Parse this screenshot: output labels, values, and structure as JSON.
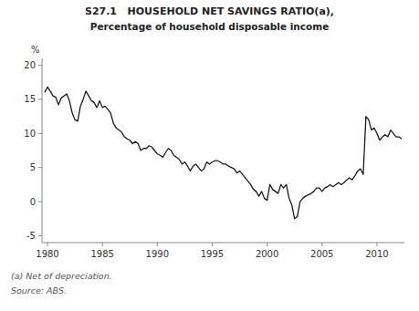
{
  "chart_data": {
    "type": "line",
    "title": "S27.1   HOUSEHOLD NET SAVINGS RATIO(a),",
    "subtitle": "Percentage of household disposable income",
    "ylabel": "%",
    "annotations": [
      "(a) Net of depreciation.",
      "Source: ABS."
    ],
    "xlim": [
      1979.5,
      2012.5
    ],
    "ylim": [
      -6,
      21
    ],
    "xticks": [
      1980,
      1985,
      1990,
      1995,
      2000,
      2005,
      2010
    ],
    "yticks": [
      -5,
      0,
      5,
      10,
      15,
      20
    ],
    "grid": false,
    "x": [
      1979.75,
      1980.0,
      1980.25,
      1980.5,
      1980.75,
      1981.0,
      1981.25,
      1981.5,
      1981.75,
      1982.0,
      1982.25,
      1982.5,
      1982.75,
      1983.0,
      1983.25,
      1983.5,
      1983.75,
      1984.0,
      1984.25,
      1984.5,
      1984.75,
      1985.0,
      1985.25,
      1985.5,
      1985.75,
      1986.0,
      1986.25,
      1986.5,
      1986.75,
      1987.0,
      1987.25,
      1987.5,
      1987.75,
      1988.0,
      1988.25,
      1988.5,
      1988.75,
      1989.0,
      1989.25,
      1989.5,
      1989.75,
      1990.0,
      1990.25,
      1990.5,
      1990.75,
      1991.0,
      1991.25,
      1991.5,
      1991.75,
      1992.0,
      1992.25,
      1992.5,
      1992.75,
      1993.0,
      1993.25,
      1993.5,
      1993.75,
      1994.0,
      1994.25,
      1994.5,
      1994.75,
      1995.0,
      1995.25,
      1995.5,
      1995.75,
      1996.0,
      1996.25,
      1996.5,
      1996.75,
      1997.0,
      1997.25,
      1997.5,
      1997.75,
      1998.0,
      1998.25,
      1998.5,
      1998.75,
      1999.0,
      1999.25,
      1999.5,
      1999.75,
      2000.0,
      2000.25,
      2000.5,
      2000.75,
      2001.0,
      2001.25,
      2001.5,
      2001.75,
      2002.0,
      2002.25,
      2002.5,
      2002.75,
      2003.0,
      2003.25,
      2003.5,
      2003.75,
      2004.0,
      2004.25,
      2004.5,
      2004.75,
      2005.0,
      2005.25,
      2005.5,
      2005.75,
      2006.0,
      2006.25,
      2006.5,
      2006.75,
      2007.0,
      2007.25,
      2007.5,
      2007.75,
      2008.0,
      2008.25,
      2008.5,
      2008.75,
      2009.0,
      2009.25,
      2009.5,
      2009.75,
      2010.0,
      2010.25,
      2010.5,
      2010.75,
      2011.0,
      2011.25,
      2011.5,
      2011.75,
      2012.0,
      2012.25
    ],
    "series": [
      {
        "color": "#1a1a1a",
        "values": [
          16.0,
          16.8,
          16.2,
          15.5,
          15.3,
          14.2,
          15.2,
          15.5,
          15.8,
          14.8,
          13.0,
          12.0,
          11.8,
          14.0,
          15.0,
          16.2,
          15.5,
          14.8,
          14.5,
          13.8,
          14.8,
          13.8,
          14.0,
          13.5,
          13.0,
          11.5,
          10.8,
          10.5,
          10.2,
          9.5,
          9.2,
          9.0,
          8.5,
          8.8,
          8.5,
          7.5,
          7.8,
          7.8,
          8.2,
          8.0,
          7.5,
          7.0,
          6.8,
          6.5,
          7.2,
          7.8,
          7.5,
          6.8,
          6.5,
          6.2,
          5.5,
          5.8,
          5.2,
          4.5,
          5.2,
          5.5,
          5.0,
          4.5,
          4.8,
          5.8,
          5.5,
          5.8,
          6.0,
          6.0,
          5.8,
          5.5,
          5.5,
          5.2,
          5.0,
          4.8,
          4.2,
          4.5,
          4.0,
          3.5,
          3.0,
          2.5,
          1.8,
          1.5,
          0.8,
          1.5,
          0.5,
          0.2,
          2.5,
          1.8,
          1.5,
          1.2,
          2.5,
          2.0,
          2.5,
          0.5,
          -0.5,
          -2.5,
          -2.2,
          0.0,
          0.5,
          0.8,
          1.0,
          1.2,
          1.5,
          2.0,
          2.0,
          1.5,
          2.0,
          2.2,
          2.5,
          2.2,
          2.5,
          2.8,
          2.5,
          2.8,
          3.2,
          3.5,
          3.2,
          3.8,
          4.5,
          4.8,
          4.0,
          12.5,
          12.0,
          10.5,
          10.8,
          10.0,
          9.0,
          9.5,
          9.8,
          9.5,
          10.5,
          10.0,
          9.5,
          9.5,
          9.2
        ]
      }
    ]
  }
}
